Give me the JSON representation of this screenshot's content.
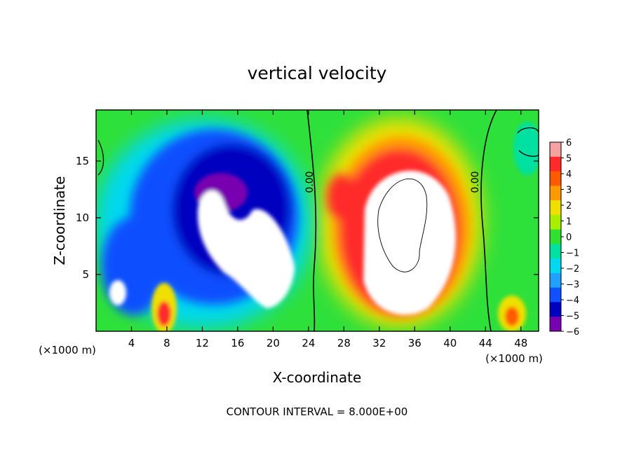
{
  "chart_data": {
    "type": "heatmap",
    "title": "vertical velocity",
    "xlabel": "X-coordinate",
    "ylabel": "Z-coordinate",
    "x_unit_left": "(×1000 m)",
    "x_unit_right": "(×1000 m)",
    "footer": "CONTOUR INTERVAL = 8.000E+00",
    "xlim": [
      0,
      50
    ],
    "ylim": [
      0,
      19.5
    ],
    "x_ticks": [
      4,
      8,
      12,
      16,
      20,
      24,
      28,
      32,
      36,
      40,
      44,
      48
    ],
    "y_ticks": [
      5,
      10,
      15
    ],
    "colorbar": {
      "levels": [
        6,
        5,
        4,
        3,
        2,
        1,
        0,
        -1,
        -2,
        -3,
        -4,
        -5,
        -6
      ],
      "colors": [
        "#f4a3a3",
        "#ff2a2a",
        "#ff5a00",
        "#ff9a00",
        "#f0e000",
        "#a8f000",
        "#30e030",
        "#00e0a0",
        "#00d8f0",
        "#20a0ff",
        "#1050ff",
        "#0000c0",
        "#7800b0"
      ]
    },
    "contour_label": "0.00",
    "grid": false,
    "legend": "right"
  }
}
